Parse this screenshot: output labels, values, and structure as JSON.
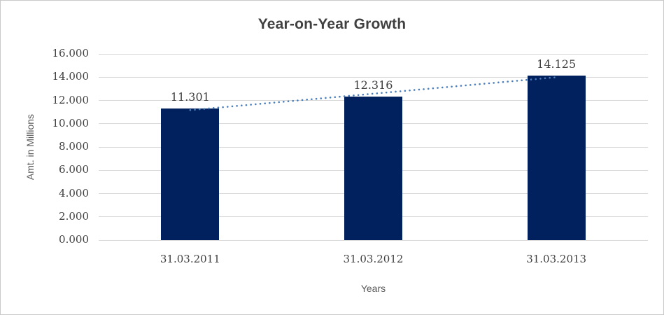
{
  "chart_data": {
    "type": "bar",
    "title": "Year-on-Year Growth",
    "xlabel": "Years",
    "ylabel": "Amt. in Millions",
    "categories": [
      "31.03.2011",
      "31.03.2012",
      "31.03.2013"
    ],
    "values": [
      11.301,
      12.316,
      14.125
    ],
    "data_labels": [
      "11.301",
      "12.316",
      "14.125"
    ],
    "ylim": [
      0,
      16
    ],
    "yticks": [
      {
        "value": 0,
        "label": "0.000"
      },
      {
        "value": 2,
        "label": "2.000"
      },
      {
        "value": 4,
        "label": "4.000"
      },
      {
        "value": 6,
        "label": "6.000"
      },
      {
        "value": 8,
        "label": "8.000"
      },
      {
        "value": 10,
        "label": "10.000"
      },
      {
        "value": 12,
        "label": "12.000"
      },
      {
        "value": 14,
        "label": "14.000"
      },
      {
        "value": 16,
        "label": "16.000"
      }
    ],
    "grid": true,
    "legend": false,
    "trendline": {
      "type": "linear",
      "style": "dotted"
    }
  },
  "colors": {
    "bar": "#00215e",
    "grid": "#d9d9d9",
    "title_text": "#404040",
    "axis_title_text": "#595959",
    "tick_text": "#3f3f3f",
    "trend": "#4a7ebb",
    "frame_border": "#c9c9c9"
  }
}
